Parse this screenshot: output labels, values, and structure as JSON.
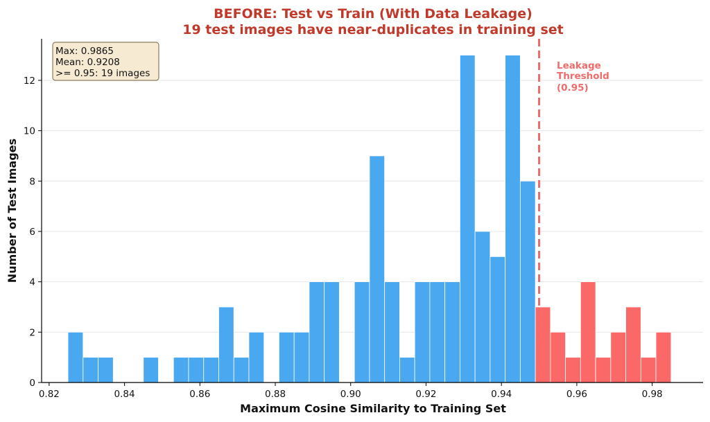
{
  "chart_data": {
    "type": "bar",
    "title_line1": "BEFORE: Test vs Train (With Data Leakage)",
    "title_line2": "19 test images have near-duplicates in training set",
    "xlabel": "Maximum Cosine Similarity to Training Set",
    "ylabel": "Number of Test Images",
    "xlim": [
      0.818,
      0.9935
    ],
    "ylim": [
      0,
      13.65
    ],
    "xticks": [
      "0.82",
      "0.84",
      "0.86",
      "0.88",
      "0.90",
      "0.92",
      "0.94",
      "0.96",
      "0.98"
    ],
    "yticks": [
      "0",
      "2",
      "4",
      "6",
      "8",
      "10",
      "12"
    ],
    "bin_start": 0.825,
    "bin_width": 0.004,
    "counts": [
      2,
      1,
      1,
      0,
      0,
      1,
      0,
      1,
      1,
      1,
      3,
      1,
      2,
      0,
      2,
      2,
      4,
      4,
      0,
      4,
      9,
      4,
      1,
      4,
      4,
      4,
      13,
      6,
      5,
      13,
      8,
      3,
      2,
      1,
      4,
      1,
      2,
      3,
      1,
      2
    ],
    "threshold": 0.95,
    "threshold_label": [
      "Leakage",
      "Threshold",
      "(0.95)"
    ],
    "stats_box": [
      "Max: 0.9865",
      "Mean: 0.9208",
      ">= 0.95: 19 images"
    ],
    "grid": "y-only",
    "colors": {
      "below_threshold": "#4aa8f0",
      "above_threshold": "#fa6868",
      "threshold_line": "#f06b6b",
      "title": "#c0392b",
      "stats_box_fill": "#f6ead3",
      "stats_box_edge": "#8a7a60"
    }
  }
}
